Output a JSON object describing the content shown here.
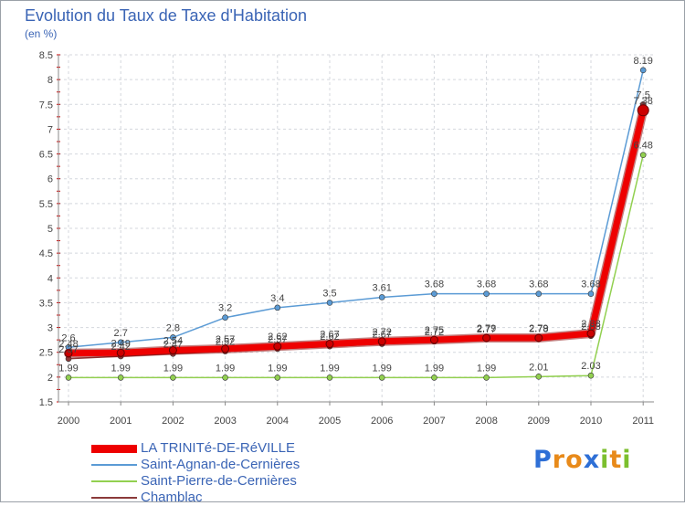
{
  "chart_data": {
    "type": "line",
    "title": "Evolution du Taux de Taxe d'Habitation",
    "unit": "(en %)",
    "xlabel": "",
    "ylabel": "",
    "x": [
      "2000",
      "2001",
      "2002",
      "2003",
      "2004",
      "2005",
      "2006",
      "2007",
      "2008",
      "2009",
      "2010",
      "2011"
    ],
    "ylim": [
      1.5,
      8.5
    ],
    "yticks": [
      "1.5",
      "2",
      "2.5",
      "3",
      "3.5",
      "4",
      "4.5",
      "5",
      "5.5",
      "6",
      "6.5",
      "7",
      "7.5",
      "8",
      "8.5"
    ],
    "grid": true,
    "series": [
      {
        "name": "Saint-Agnan-de-Cernières",
        "color": "#5b9bd5",
        "values": [
          2.6,
          2.7,
          2.8,
          3.2,
          3.4,
          3.5,
          3.61,
          3.68,
          3.68,
          3.68,
          3.68,
          8.19
        ],
        "labels": [
          "2.6",
          "2.7",
          "2.8",
          "3.2",
          "3.4",
          "3.5",
          "3.61",
          "3.68",
          "3.68",
          "3.68",
          "3.68",
          "8.19"
        ]
      },
      {
        "name": "Saint-Pierre-de-Cernières",
        "color": "#92d050",
        "values": [
          1.99,
          1.99,
          1.99,
          1.99,
          1.99,
          1.99,
          1.99,
          1.99,
          1.99,
          2.01,
          2.03,
          6.48
        ],
        "labels": [
          "1.99",
          "1.99",
          "1.99",
          "1.99",
          "1.99",
          "1.99",
          "1.99",
          "1.99",
          "1.99",
          "2.01",
          "2.03",
          "6.48"
        ]
      },
      {
        "name": "Chamblac",
        "color": "#8b3a3a",
        "values": [
          2.37,
          2.42,
          2.47,
          2.52,
          2.57,
          2.62,
          2.67,
          2.72,
          2.77,
          2.78,
          2.83,
          7.5
        ],
        "labels": [
          "2.37",
          "2.42",
          "2.47",
          "2.52",
          "2.57",
          "2.62",
          "2.67",
          "2.72",
          "2.77",
          "2.78",
          "2.83",
          "7.5"
        ]
      },
      {
        "name": "LA TRINITé-DE-RéVILLE",
        "color": "#ee0000",
        "values": [
          2.48,
          2.49,
          2.54,
          2.57,
          2.62,
          2.67,
          2.72,
          2.75,
          2.79,
          2.79,
          2.88,
          7.38
        ],
        "labels": [
          "2.48",
          "2.49",
          "2.54",
          "2.57",
          "2.62",
          "2.67",
          "2.72",
          "2.75",
          "2.79",
          "2.79",
          "2.88",
          "7.38"
        ]
      }
    ]
  },
  "legend": {
    "items": [
      {
        "label": "LA TRINITé-DE-RéVILLE",
        "color": "#ee0000"
      },
      {
        "label": "Saint-Agnan-de-Cernières",
        "color": "#5b9bd5"
      },
      {
        "label": "Saint-Pierre-de-Cernières",
        "color": "#92d050"
      },
      {
        "label": "Chamblac",
        "color": "#8b3a3a"
      }
    ]
  },
  "logo": {
    "text": "Proxiti",
    "letters": [
      "P",
      "r",
      "o",
      "x",
      "i",
      "t",
      "i"
    ],
    "colors": [
      "#2e6fd6",
      "#e88a1a",
      "#e88a1a",
      "#2e6fd6",
      "#7cbf2e",
      "#e88a1a",
      "#7cbf2e"
    ]
  }
}
